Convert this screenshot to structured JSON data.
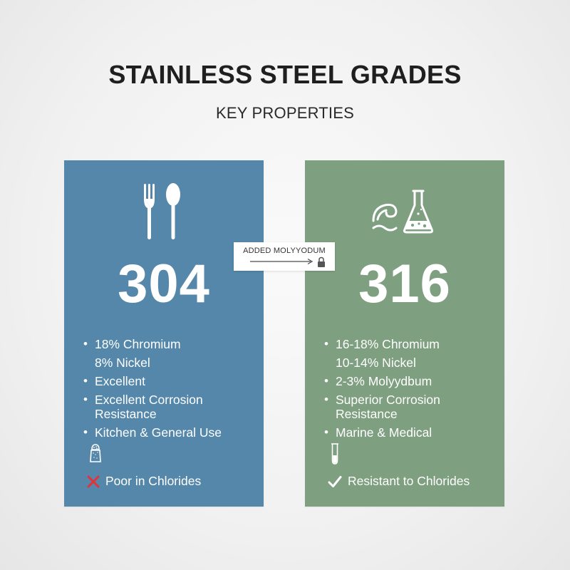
{
  "title": "STAINLESS STEEL GRADES",
  "subtitle": "KEY PROPERTIES",
  "callout": {
    "label": "ADDED MOLYYODUM",
    "icons": [
      "arrow-right-icon",
      "lock-icon"
    ]
  },
  "cards": [
    {
      "grade": "304",
      "color": "#5487a9",
      "icon": "fork-and-spoon-icon",
      "properties": [
        {
          "text": "18% Chromium",
          "bullet": true
        },
        {
          "text": "8% Nickel",
          "bullet": false
        },
        {
          "text": "Excellent",
          "bullet": true
        },
        {
          "text": "Excellent Corrosion Resistance",
          "bullet": true
        },
        {
          "text": "Kitchen & General Use",
          "bullet": true
        }
      ],
      "small_icon": "salt-shaker-icon",
      "verdict": {
        "icon": "cross-icon",
        "text": "Poor in Chlorides",
        "mark_color": "#e0343a"
      }
    },
    {
      "grade": "316",
      "color": "#7e9f80",
      "icon": "wave-and-flask-icon",
      "properties": [
        {
          "text": "16-18% Chromium",
          "bullet": true
        },
        {
          "text": "10-14% Nickel",
          "bullet": false
        },
        {
          "text": "2-3% Molyydbum",
          "bullet": true
        },
        {
          "text": "Superior Corrosion Resistance",
          "bullet": true
        },
        {
          "text": "Marine & Medical",
          "bullet": true
        }
      ],
      "small_icon": "test-tube-icon",
      "verdict": {
        "icon": "check-icon",
        "text": "Resistant to Chlorides",
        "mark_color": "#ffffff"
      }
    }
  ]
}
